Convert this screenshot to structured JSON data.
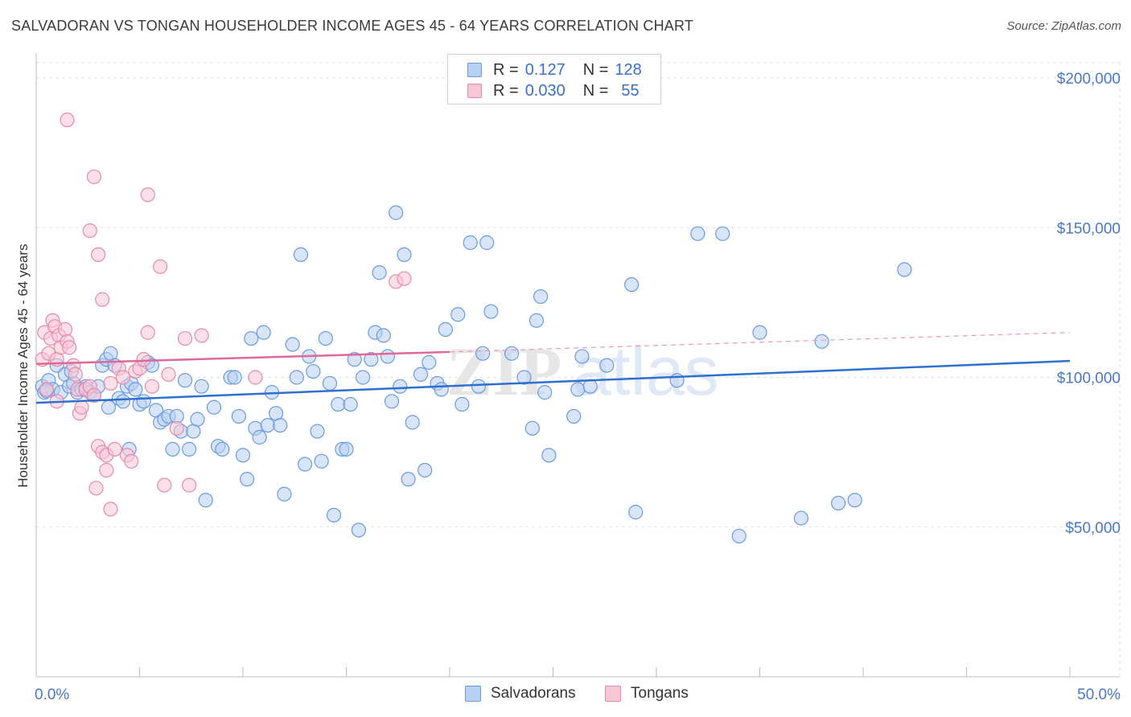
{
  "title": "SALVADORAN VS TONGAN HOUSEHOLDER INCOME AGES 45 - 64 YEARS CORRELATION CHART",
  "source": "Source: ZipAtlas.com",
  "watermark": {
    "zip": "ZIP",
    "atlas": "atlas"
  },
  "legend": {
    "rows": [
      {
        "r_label": "R =",
        "r_value": "0.127",
        "n_label": "N =",
        "n_value": "128",
        "fill": "#b8d0f4",
        "stroke": "#6a9ae0"
      },
      {
        "r_label": "R =",
        "r_value": "0.030",
        "n_label": "N =",
        "n_value": "55",
        "fill": "#f9c6d6",
        "stroke": "#e68aa8"
      }
    ]
  },
  "bottom_legend": [
    {
      "label": "Salvadorans",
      "fill": "#b8d0f4",
      "stroke": "#6a9ae0"
    },
    {
      "label": "Tongans",
      "fill": "#f9c6d6",
      "stroke": "#e68aa8"
    }
  ],
  "chart_data": {
    "type": "scatter",
    "title": "SALVADORAN VS TONGAN HOUSEHOLDER INCOME AGES 45 - 64 YEARS CORRELATION CHART",
    "xlabel": "",
    "ylabel": "Householder Income Ages 45 - 64 years",
    "xlim": [
      0,
      50
    ],
    "ylim": [
      0,
      210000
    ],
    "x_tick_labels": [
      "0.0%",
      "50.0%"
    ],
    "y_ticks": [
      50000,
      100000,
      150000,
      200000
    ],
    "y_tick_labels": [
      "$50,000",
      "$100,000",
      "$150,000",
      "$200,000"
    ],
    "grid": true,
    "legend_position": "top-center",
    "series": [
      {
        "name": "Salvadorans",
        "color": "#6a9ae0",
        "fill": "#b8d0f4",
        "trend": {
          "x": [
            0,
            50
          ],
          "y": [
            91500,
            105500
          ],
          "dashed_extension": false
        },
        "points": [
          [
            0.3,
            97000
          ],
          [
            0.4,
            95000
          ],
          [
            0.6,
            99000
          ],
          [
            0.8,
            96000
          ],
          [
            1,
            104000
          ],
          [
            1.2,
            95000
          ],
          [
            1.4,
            101000
          ],
          [
            1.6,
            97000
          ],
          [
            1.8,
            98000
          ],
          [
            2,
            95000
          ],
          [
            2.2,
            96000
          ],
          [
            2.4,
            97000
          ],
          [
            2.6,
            95000
          ],
          [
            2.8,
            94000
          ],
          [
            3,
            97000
          ],
          [
            3.2,
            104000
          ],
          [
            3.4,
            106000
          ],
          [
            3.6,
            108000
          ],
          [
            3.8,
            104000
          ],
          [
            4,
            93000
          ],
          [
            4.2,
            92000
          ],
          [
            4.4,
            97000
          ],
          [
            4.6,
            98000
          ],
          [
            4.8,
            96000
          ],
          [
            5,
            91000
          ],
          [
            5.2,
            92000
          ],
          [
            5.4,
            105000
          ],
          [
            5.6,
            104000
          ],
          [
            3.5,
            90000
          ],
          [
            4.5,
            76000
          ],
          [
            5.8,
            89000
          ],
          [
            6,
            85000
          ],
          [
            6.2,
            86000
          ],
          [
            6.4,
            87000
          ],
          [
            6.6,
            76000
          ],
          [
            6.8,
            87000
          ],
          [
            7,
            82000
          ],
          [
            7.2,
            99000
          ],
          [
            7.4,
            76000
          ],
          [
            7.6,
            82000
          ],
          [
            7.8,
            86000
          ],
          [
            8,
            97000
          ],
          [
            8.2,
            59000
          ],
          [
            8.6,
            90000
          ],
          [
            8.8,
            77000
          ],
          [
            9,
            76000
          ],
          [
            9.4,
            100000
          ],
          [
            9.6,
            100000
          ],
          [
            9.8,
            87000
          ],
          [
            10,
            74000
          ],
          [
            10.2,
            66000
          ],
          [
            10.4,
            113000
          ],
          [
            10.6,
            83000
          ],
          [
            10.8,
            80000
          ],
          [
            11,
            115000
          ],
          [
            11.2,
            84000
          ],
          [
            11.4,
            95000
          ],
          [
            11.6,
            88000
          ],
          [
            11.8,
            84000
          ],
          [
            12,
            61000
          ],
          [
            12.4,
            111000
          ],
          [
            12.6,
            100000
          ],
          [
            12.8,
            141000
          ],
          [
            13,
            71000
          ],
          [
            13.2,
            107000
          ],
          [
            13.4,
            102000
          ],
          [
            13.6,
            82000
          ],
          [
            13.8,
            72000
          ],
          [
            14,
            113000
          ],
          [
            14.2,
            98000
          ],
          [
            14.4,
            54000
          ],
          [
            14.6,
            91000
          ],
          [
            14.8,
            76000
          ],
          [
            15,
            76000
          ],
          [
            15.2,
            91000
          ],
          [
            15.4,
            106000
          ],
          [
            15.6,
            49000
          ],
          [
            15.8,
            100000
          ],
          [
            16.2,
            106000
          ],
          [
            16.4,
            115000
          ],
          [
            16.6,
            135000
          ],
          [
            16.8,
            114000
          ],
          [
            17,
            107000
          ],
          [
            17.2,
            92000
          ],
          [
            17.4,
            155000
          ],
          [
            17.6,
            97000
          ],
          [
            17.8,
            141000
          ],
          [
            18,
            66000
          ],
          [
            18.2,
            85000
          ],
          [
            18.6,
            101000
          ],
          [
            18.8,
            69000
          ],
          [
            19,
            105000
          ],
          [
            19.4,
            98000
          ],
          [
            19.6,
            96000
          ],
          [
            19.8,
            116000
          ],
          [
            20.4,
            121000
          ],
          [
            20.6,
            91000
          ],
          [
            21,
            145000
          ],
          [
            21.4,
            97000
          ],
          [
            21.6,
            108000
          ],
          [
            22,
            122000
          ],
          [
            21.8,
            145000
          ],
          [
            23,
            108000
          ],
          [
            23.6,
            100000
          ],
          [
            24,
            83000
          ],
          [
            24.2,
            119000
          ],
          [
            24.4,
            127000
          ],
          [
            24.6,
            95000
          ],
          [
            24.8,
            74000
          ],
          [
            26,
            87000
          ],
          [
            26.2,
            96000
          ],
          [
            26.4,
            107000
          ],
          [
            26.8,
            97000
          ],
          [
            27.6,
            104000
          ],
          [
            28.8,
            131000
          ],
          [
            29,
            55000
          ],
          [
            31,
            99000
          ],
          [
            32,
            148000
          ],
          [
            33.2,
            148000
          ],
          [
            34,
            47000
          ],
          [
            35,
            115000
          ],
          [
            37,
            53000
          ],
          [
            38,
            112000
          ],
          [
            38.8,
            58000
          ],
          [
            39.6,
            59000
          ],
          [
            42,
            136000
          ],
          [
            0.5,
            95500
          ],
          [
            1.7,
            102000
          ]
        ]
      },
      {
        "name": "Tongans",
        "color": "#e68aa8",
        "fill": "#f9c6d6",
        "trend": {
          "x": [
            0,
            20
          ],
          "y": [
            104500,
            108500
          ],
          "dashed_extension": true,
          "dashed_to": [
            50,
            115000
          ]
        },
        "points": [
          [
            0.3,
            106000
          ],
          [
            0.4,
            115000
          ],
          [
            0.6,
            108000
          ],
          [
            0.7,
            113000
          ],
          [
            0.8,
            119000
          ],
          [
            0.9,
            117000
          ],
          [
            1,
            106000
          ],
          [
            1.1,
            114000
          ],
          [
            1.2,
            110000
          ],
          [
            1.4,
            116000
          ],
          [
            1.5,
            112000
          ],
          [
            1.6,
            110000
          ],
          [
            1.8,
            104000
          ],
          [
            1.9,
            101000
          ],
          [
            2,
            96000
          ],
          [
            2.1,
            88000
          ],
          [
            2.2,
            90000
          ],
          [
            2.4,
            96000
          ],
          [
            2.6,
            97000
          ],
          [
            2.8,
            94000
          ],
          [
            0.5,
            96000
          ],
          [
            1,
            92000
          ],
          [
            3,
            77000
          ],
          [
            3.2,
            75000
          ],
          [
            3.4,
            74000
          ],
          [
            3.6,
            98000
          ],
          [
            3.8,
            76000
          ],
          [
            4,
            103000
          ],
          [
            4.2,
            100000
          ],
          [
            4.4,
            74000
          ],
          [
            4.6,
            72000
          ],
          [
            4.8,
            102000
          ],
          [
            5,
            103000
          ],
          [
            5.2,
            106000
          ],
          [
            5.4,
            115000
          ],
          [
            5.6,
            97000
          ],
          [
            6,
            137000
          ],
          [
            6.2,
            64000
          ],
          [
            6.4,
            101000
          ],
          [
            6.8,
            83000
          ],
          [
            7.2,
            113000
          ],
          [
            8,
            114000
          ],
          [
            3.2,
            126000
          ],
          [
            3,
            141000
          ],
          [
            1.5,
            186000
          ],
          [
            2.8,
            167000
          ],
          [
            5.4,
            161000
          ],
          [
            2.6,
            149000
          ],
          [
            3.4,
            69000
          ],
          [
            3.6,
            56000
          ],
          [
            2.9,
            63000
          ],
          [
            7.4,
            64000
          ],
          [
            17.4,
            132000
          ],
          [
            17.8,
            133000
          ],
          [
            10.6,
            100000
          ]
        ]
      }
    ]
  }
}
